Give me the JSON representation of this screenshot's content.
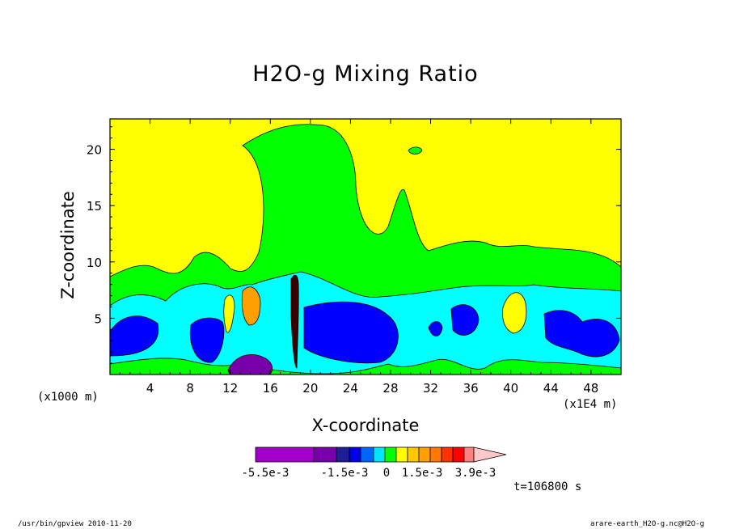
{
  "chart_data": {
    "type": "heatmap",
    "title": "H2O-g Mixing Ratio",
    "xlabel": "X-coordinate",
    "ylabel": "Z-coordinate",
    "x_unit_note": "(x1000 m)",
    "x_scale_note": "(x1E4 m)",
    "x_ticks": [
      4,
      8,
      12,
      16,
      20,
      24,
      28,
      32,
      36,
      40,
      44,
      48
    ],
    "y_ticks": [
      5,
      10,
      15,
      20
    ],
    "xlim": [
      0,
      51
    ],
    "ylim": [
      0,
      22.7
    ],
    "colorbar": {
      "colors": [
        "#a000c8",
        "#7800a8",
        "#1e1e96",
        "#0000e6",
        "#0064ff",
        "#00e6ff",
        "#00ff00",
        "#ffff00",
        "#ffc800",
        "#ffa000",
        "#ff7800",
        "#ff3200",
        "#ff0000",
        "#ff8080",
        "#ffc8c8"
      ],
      "tick_labels": [
        "-5.5e-3",
        "-1.5e-3",
        "0",
        "1.5e-3",
        "3.9e-3"
      ]
    },
    "time_label": "t=106800 s"
  },
  "footer": {
    "left": "/usr/bin/gpview  2010-11-20",
    "right": "arare-earth_H2O-g.nc@H2O-g"
  }
}
